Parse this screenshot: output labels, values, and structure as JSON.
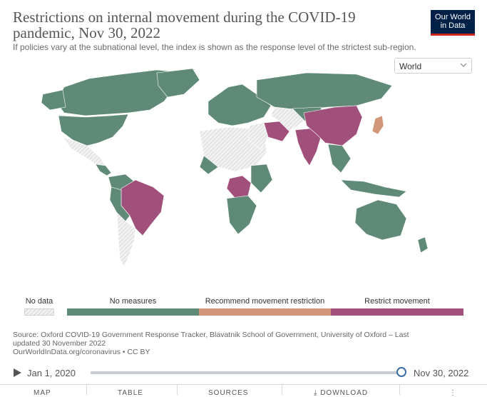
{
  "header": {
    "title": "Restrictions on internal movement during the COVID-19 pandemic, Nov 30, 2022",
    "subtitle": "If policies vary at the subnational level, the index is shown as the response level of the strictest sub-region.",
    "logo_line1": "Our World",
    "logo_line2": "in Data"
  },
  "region_select": {
    "value": "World"
  },
  "legend": {
    "items": [
      {
        "label": "No data",
        "color": "#e6e6e6"
      },
      {
        "label": "No measures",
        "color": "#5f8a77"
      },
      {
        "label": "Recommend movement restriction",
        "color": "#d2977a"
      },
      {
        "label": "Restrict movement",
        "color": "#a0507a"
      }
    ]
  },
  "source": {
    "line1": "Source: Oxford COVID-19 Government Response Tracker, Blavatnik School of Government, University of Oxford – Last",
    "line2": "updated 30 November 2022",
    "line3": "OurWorldInData.org/coronavirus • CC BY"
  },
  "timeline": {
    "start": "Jan 1, 2020",
    "end": "Nov 30, 2022",
    "position": 1.0
  },
  "tabs": [
    "MAP",
    "TABLE",
    "SOURCES",
    "DOWNLOAD"
  ],
  "colors": {
    "no_measures": "#5f8a77",
    "recommend": "#d2977a",
    "restrict": "#a0507a",
    "no_data": "#e6e6e6"
  }
}
